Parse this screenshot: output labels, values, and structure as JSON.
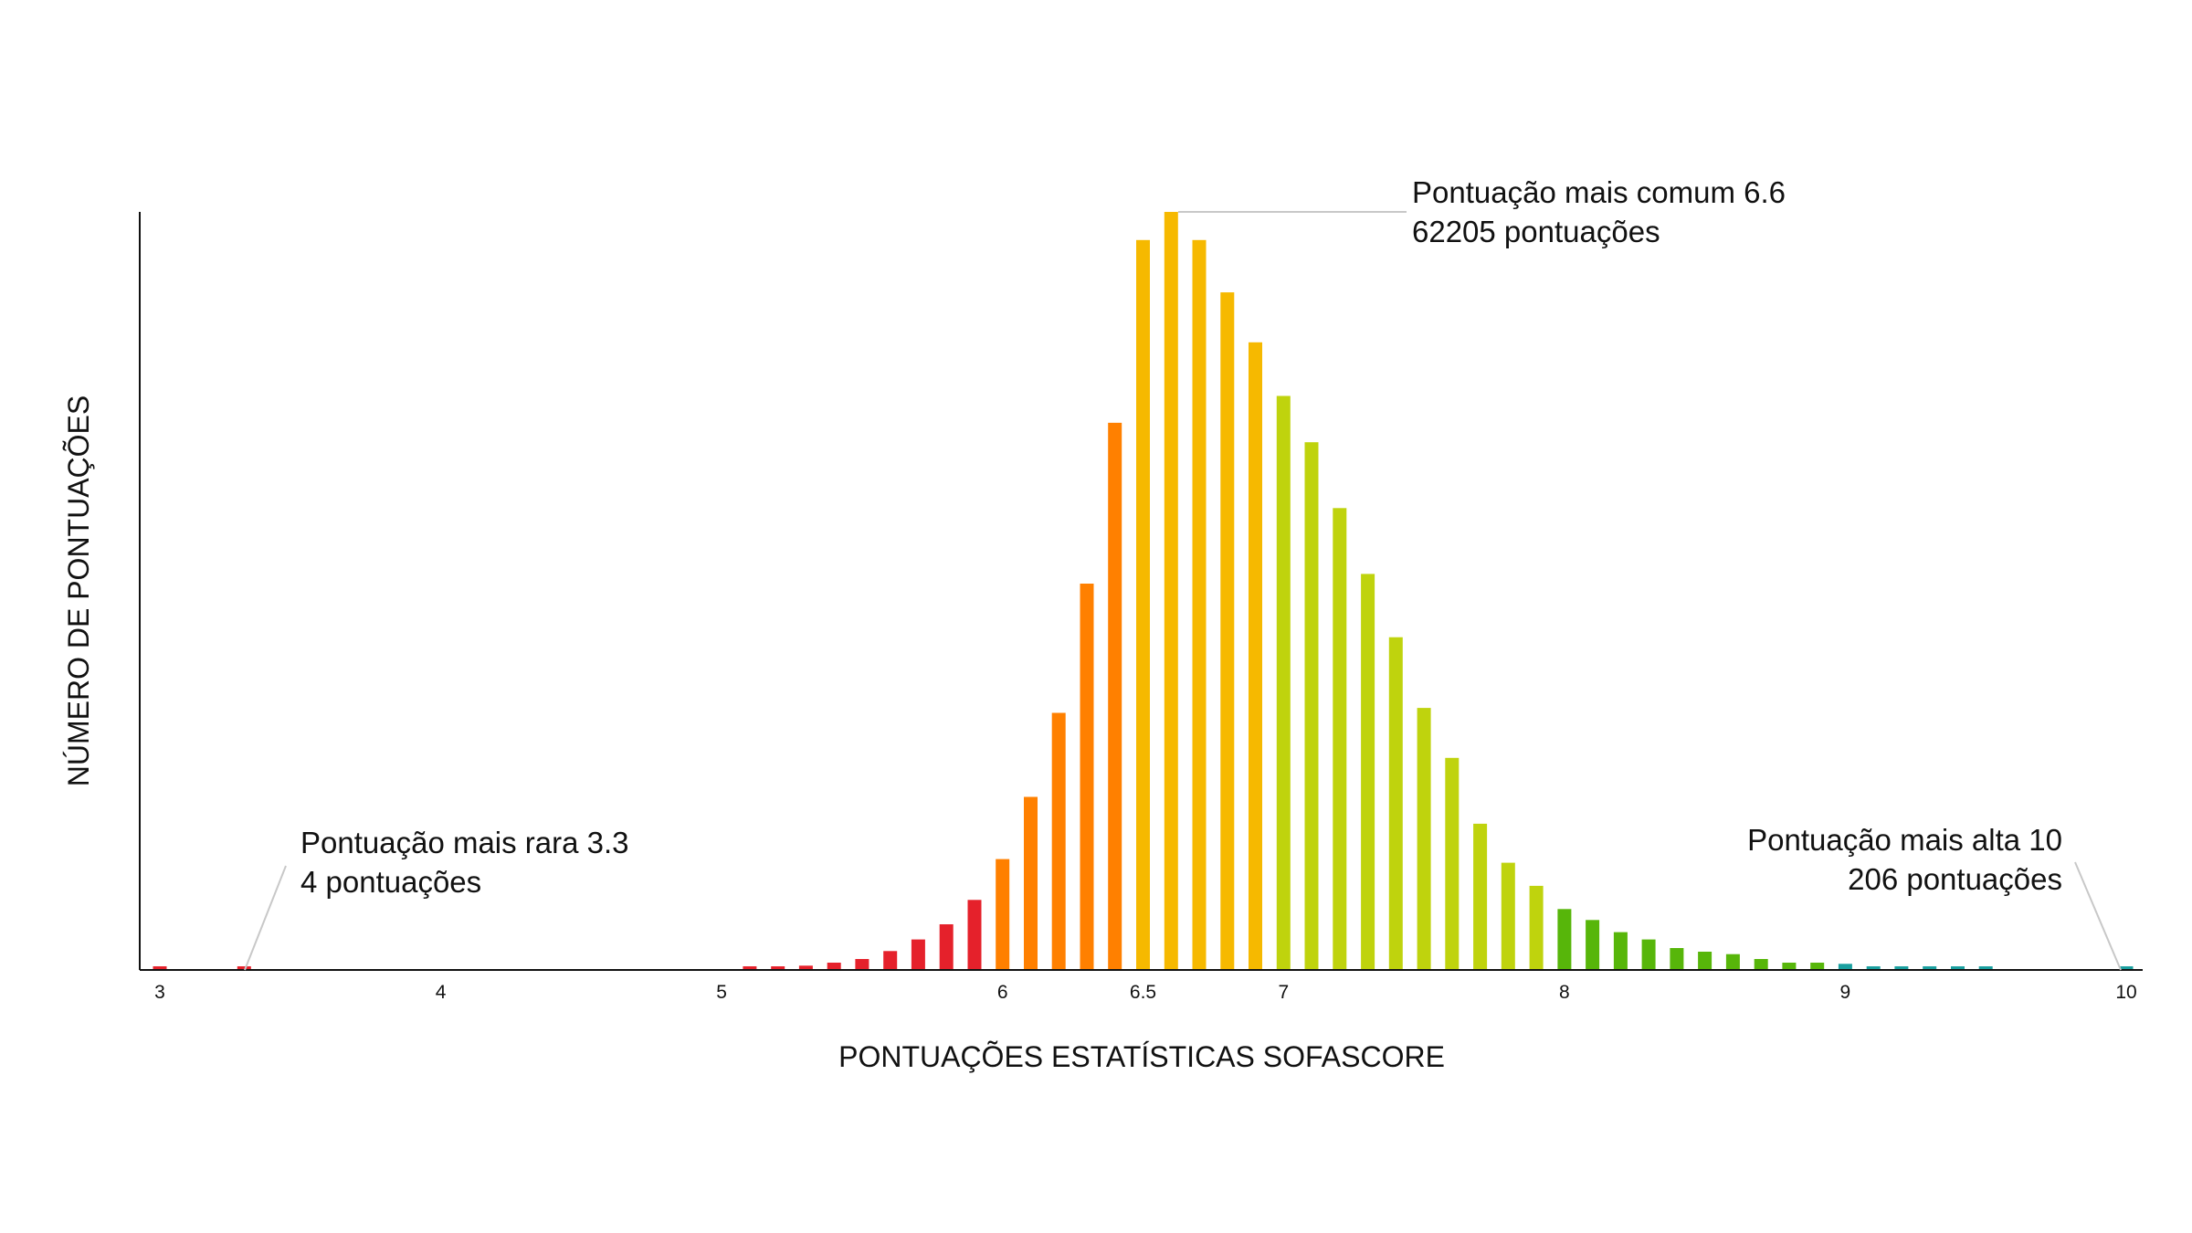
{
  "chart_data": {
    "type": "bar",
    "title": "",
    "xlabel": "PONTUAÇÕES ESTATÍSTICAS SOFASCORE",
    "ylabel": "NÚMERO DE PONTUAÇÕES",
    "xlim": [
      2.9,
      10.05
    ],
    "ylim": [
      0,
      62205
    ],
    "grid": false,
    "x_ticks": [
      3,
      4,
      5,
      6,
      6.5,
      7,
      8,
      9,
      10
    ],
    "x_tick_labels": [
      "3",
      "4",
      "5",
      "6",
      "6.5",
      "7",
      "8",
      "9",
      "10"
    ],
    "x": [
      3.0,
      3.3,
      5.1,
      5.2,
      5.3,
      5.4,
      5.5,
      5.6,
      5.7,
      5.8,
      5.9,
      6.0,
      6.1,
      6.2,
      6.3,
      6.4,
      6.5,
      6.6,
      6.7,
      6.8,
      6.9,
      7.0,
      7.1,
      7.2,
      7.3,
      7.4,
      7.5,
      7.6,
      7.7,
      7.8,
      7.9,
      8.0,
      8.1,
      8.2,
      8.3,
      8.4,
      8.5,
      8.6,
      8.7,
      8.8,
      8.9,
      9.0,
      9.1,
      9.2,
      9.3,
      9.4,
      9.5,
      10.0
    ],
    "values": [
      300,
      4,
      250,
      300,
      350,
      600,
      900,
      1550,
      2500,
      3750,
      5750,
      9100,
      14200,
      21100,
      31700,
      44900,
      59900,
      62205,
      59900,
      55600,
      51500,
      47100,
      43300,
      37900,
      32500,
      27300,
      21500,
      17400,
      12000,
      8800,
      6900,
      5000,
      4100,
      3100,
      2500,
      1800,
      1500,
      1300,
      900,
      600,
      600,
      500,
      250,
      250,
      250,
      250,
      250,
      206
    ],
    "bar_colors": [
      "#e5212b",
      "#e5212b",
      "#e5212b",
      "#e5212b",
      "#e5212b",
      "#e5212b",
      "#e5212b",
      "#e5212b",
      "#e5212b",
      "#e5212b",
      "#e5212b",
      "#ff8000",
      "#ff8000",
      "#ff8000",
      "#ff8000",
      "#ff8000",
      "#f6b900",
      "#f6b900",
      "#f6b900",
      "#f6b900",
      "#f6b900",
      "#bfd30d",
      "#bfd30d",
      "#bfd30d",
      "#bfd30d",
      "#bfd30d",
      "#bfd30d",
      "#bfd30d",
      "#bfd30d",
      "#bfd30d",
      "#bfd30d",
      "#57b60a",
      "#57b60a",
      "#57b60a",
      "#57b60a",
      "#57b60a",
      "#57b60a",
      "#57b60a",
      "#57b60a",
      "#57b60a",
      "#57b60a",
      "#1a9f9f",
      "#1a9f9f",
      "#1a9f9f",
      "#1a9f9f",
      "#1a9f9f",
      "#1a9f9f",
      "#1a9f9f"
    ],
    "annotations": [
      {
        "id": "common",
        "lines": [
          "Pontuação mais comum 6.6",
          "62205 pontuações"
        ],
        "x": 6.6,
        "align": "left"
      },
      {
        "id": "rare",
        "lines": [
          "Pontuação mais rara 3.3",
          "4 pontuações"
        ],
        "x": 3.3,
        "align": "left"
      },
      {
        "id": "high",
        "lines": [
          "Pontuação mais alta 10",
          "206 pontuações"
        ],
        "x": 10.0,
        "align": "right"
      }
    ]
  },
  "colors": {
    "axis": "#111111",
    "leader_line": "#c8c8c8"
  }
}
